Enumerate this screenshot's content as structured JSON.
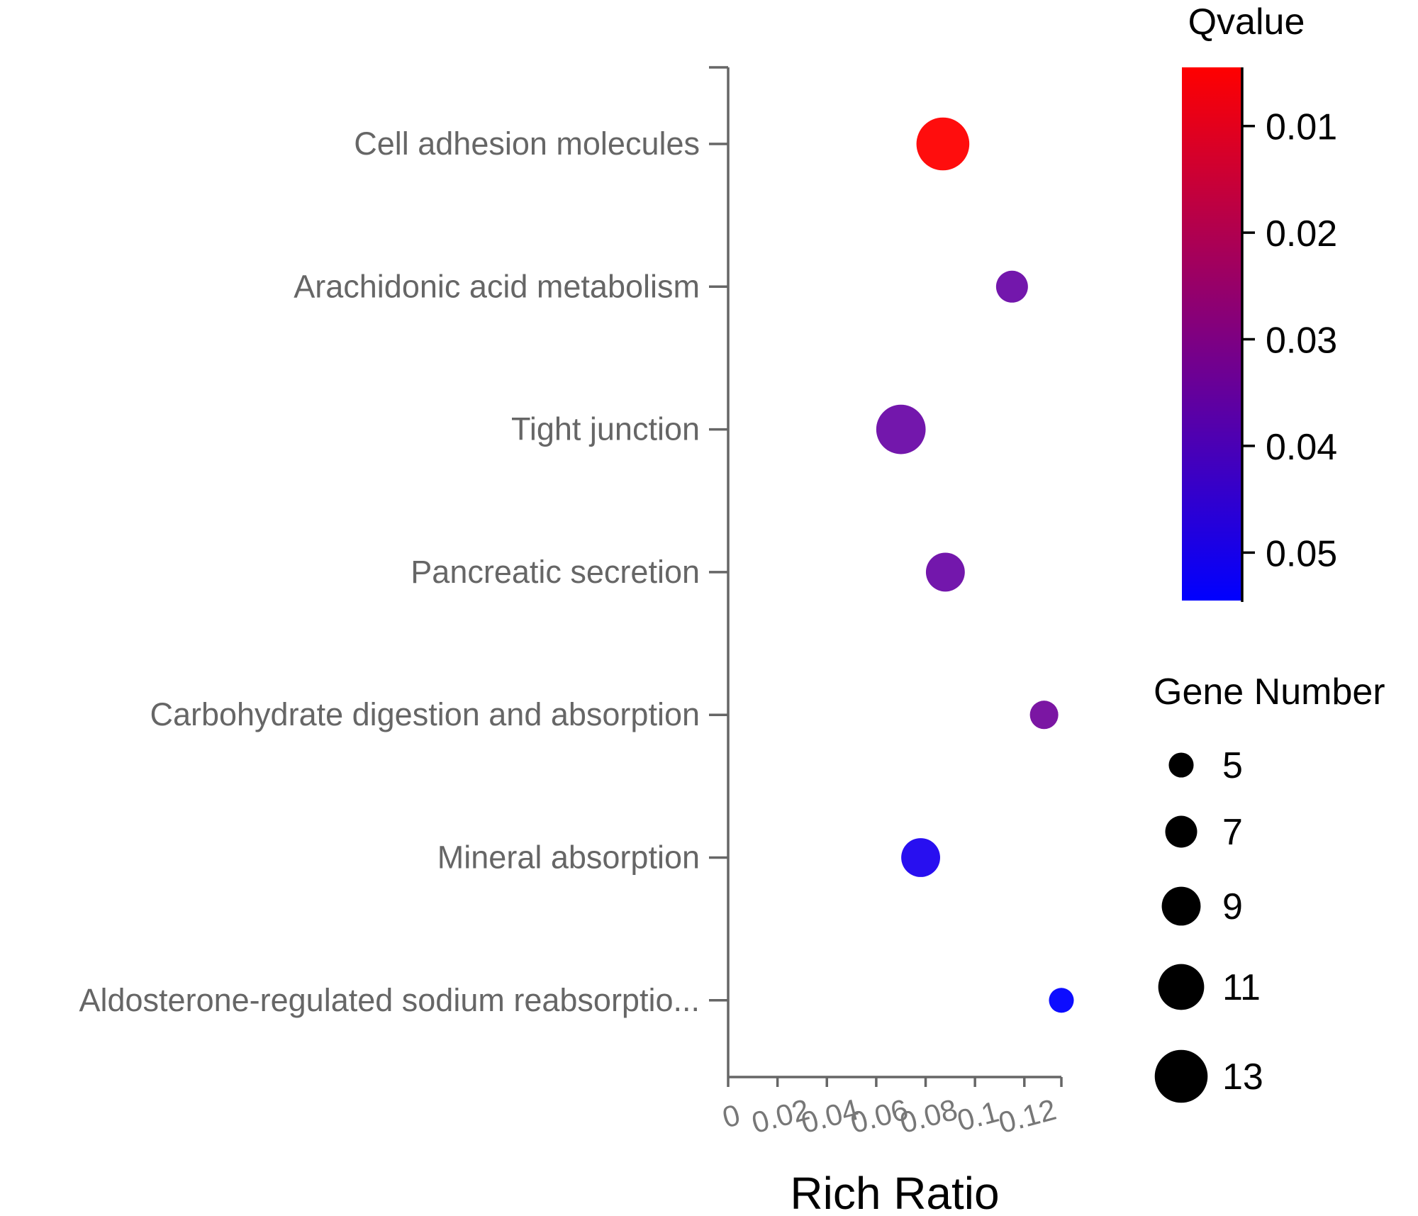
{
  "chart_data": {
    "type": "scatter",
    "subtype": "bubble",
    "title": "",
    "xlabel": "Rich Ratio",
    "ylabel": "",
    "xlim": [
      0,
      0.135
    ],
    "xticks": [
      0,
      0.02,
      0.04,
      0.06,
      0.08,
      0.1,
      0.12
    ],
    "xtick_labels": [
      "0",
      "0.02",
      "0.04",
      "0.06",
      "0.08",
      "0.1",
      "0.12"
    ],
    "categories": [
      "Cell adhesion molecules",
      "Arachidonic acid metabolism",
      "Tight junction",
      "Pancreatic secretion",
      "Carbohydrate digestion and absorption",
      "Mineral absorption",
      "Aldosterone-regulated sodium reabsorptio..."
    ],
    "points": [
      {
        "term": "Cell adhesion molecules",
        "rich_ratio": 0.087,
        "gene_number": 13,
        "qvalue": 0.007,
        "color": "#ff0000"
      },
      {
        "term": "Arachidonic acid metabolism",
        "rich_ratio": 0.115,
        "gene_number": 7,
        "qvalue": 0.035,
        "color": "#6b0ba8"
      },
      {
        "term": "Tight junction",
        "rich_ratio": 0.07,
        "gene_number": 12,
        "qvalue": 0.035,
        "color": "#6b0ba8"
      },
      {
        "term": "Pancreatic secretion",
        "rich_ratio": 0.088,
        "gene_number": 9,
        "qvalue": 0.035,
        "color": "#6b0ba8"
      },
      {
        "term": "Carbohydrate digestion and absorption",
        "rich_ratio": 0.128,
        "gene_number": 6,
        "qvalue": 0.033,
        "color": "#74099e"
      },
      {
        "term": "Mineral absorption",
        "rich_ratio": 0.078,
        "gene_number": 9,
        "qvalue": 0.05,
        "color": "#1c02ef"
      },
      {
        "term": "Aldosterone-regulated sodium reabsorptio...",
        "rich_ratio": 0.135,
        "gene_number": 5,
        "qvalue": 0.053,
        "color": "#0000ff"
      }
    ],
    "color_legend": {
      "title": "Qvalue",
      "ticks": [
        "0.01",
        "0.02",
        "0.03",
        "0.04",
        "0.05"
      ],
      "range": [
        0.0045,
        0.0545
      ],
      "low_color": "#ff0000",
      "high_color": "#0000ff"
    },
    "size_legend": {
      "title": "Gene Number",
      "values": [
        5,
        7,
        9,
        11,
        13
      ]
    }
  }
}
